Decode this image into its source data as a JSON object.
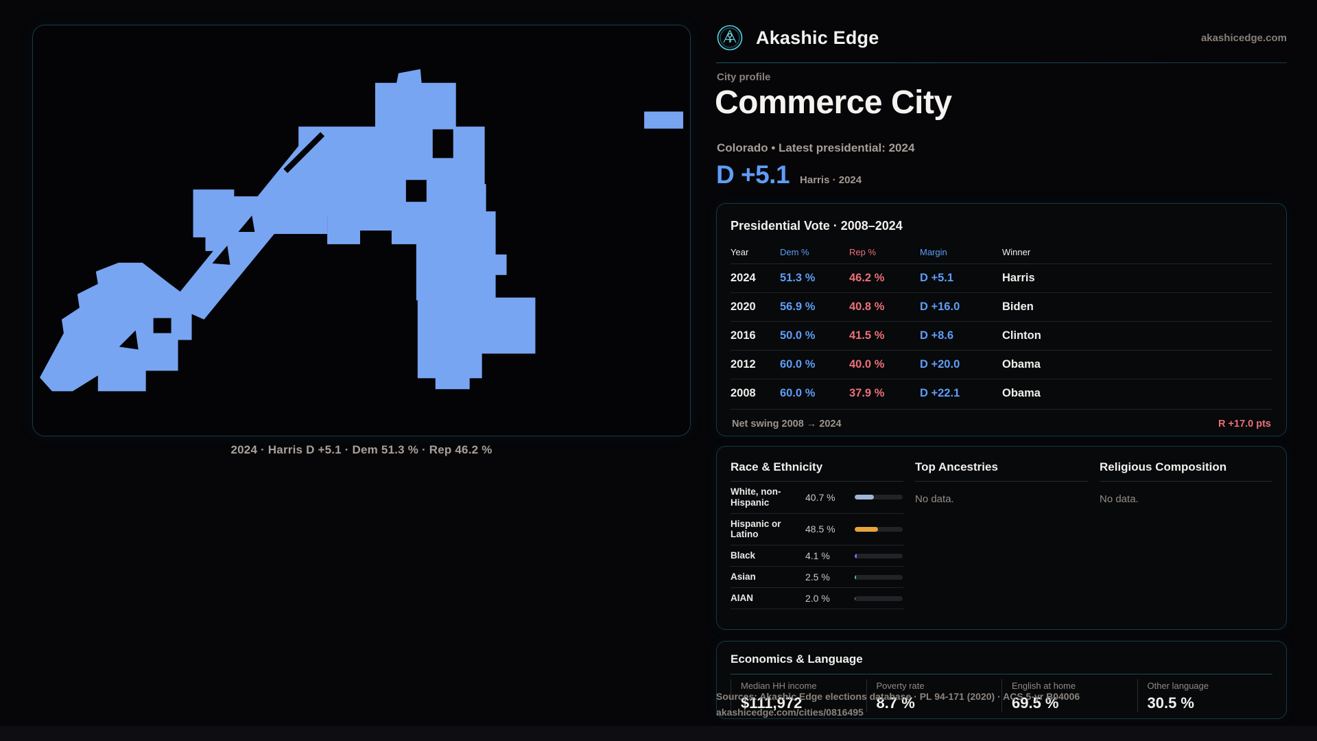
{
  "brand": {
    "name": "Akashic Edge",
    "domain": "akashicedge.com"
  },
  "profile": {
    "kicker": "City profile",
    "city": "Commerce City",
    "subtitle": "Colorado • Latest presidential: 2024",
    "headline_margin": "D +5.1",
    "headline_note": "Harris · 2024"
  },
  "map": {
    "fill": "#78a5f2",
    "caption": "2024 · Harris D +5.1 · Dem 51.3 % · Rep 46.2 %"
  },
  "chart_data": {
    "type": "table",
    "title": "Presidential Vote · 2008–2024",
    "columns": [
      "Year",
      "Dem %",
      "Rep %",
      "Margin",
      "Winner"
    ],
    "rows": [
      {
        "year": "2024",
        "dem": "51.3 %",
        "rep": "46.2 %",
        "margin": "D +5.1",
        "winner": "Harris"
      },
      {
        "year": "2020",
        "dem": "56.9 %",
        "rep": "40.8 %",
        "margin": "D +16.0",
        "winner": "Biden"
      },
      {
        "year": "2016",
        "dem": "50.0 %",
        "rep": "41.5 %",
        "margin": "D +8.6",
        "winner": "Clinton"
      },
      {
        "year": "2012",
        "dem": "60.0 %",
        "rep": "40.0 %",
        "margin": "D +20.0",
        "winner": "Obama"
      },
      {
        "year": "2008",
        "dem": "60.0 %",
        "rep": "37.9 %",
        "margin": "D +22.1",
        "winner": "Obama"
      }
    ],
    "net_swing_label": "Net swing 2008 → 2024",
    "net_swing_value": "R +17.0 pts"
  },
  "demographics": {
    "race_title": "Race & Ethnicity",
    "races": [
      {
        "label": "White, non-Hispanic",
        "value": "40.7 %",
        "pct": 40.7,
        "color": "#9fb6d4"
      },
      {
        "label": "Hispanic or Latino",
        "value": "48.5 %",
        "pct": 48.5,
        "color": "#e8a23c"
      },
      {
        "label": "Black",
        "value": "4.1 %",
        "pct": 4.1,
        "color": "#7b6cf0"
      },
      {
        "label": "Asian",
        "value": "2.5 %",
        "pct": 2.5,
        "color": "#37d3a2"
      },
      {
        "label": "AIAN",
        "value": "2.0 %",
        "pct": 2.0,
        "color": "#e08231"
      }
    ],
    "ancestries_title": "Top Ancestries",
    "ancestries_empty": "No data.",
    "religion_title": "Religious Composition",
    "religion_empty": "No data."
  },
  "economics": {
    "title": "Economics & Language",
    "stats": [
      {
        "label": "Median HH income",
        "value": "$111,972"
      },
      {
        "label": "Poverty rate",
        "value": "8.7 %"
      },
      {
        "label": "English at home",
        "value": "69.5 %"
      },
      {
        "label": "Other language",
        "value": "30.5 %"
      }
    ]
  },
  "footer": {
    "sources": "Sources: Akashic Edge elections database · PL 94-171 (2020) · ACS 5-yr B04006",
    "permalink": "akashicedge.com/cities/0816495"
  },
  "colors": {
    "dem": "#5f9df6",
    "rep": "#ee6f75",
    "accent": "#2f8294"
  }
}
